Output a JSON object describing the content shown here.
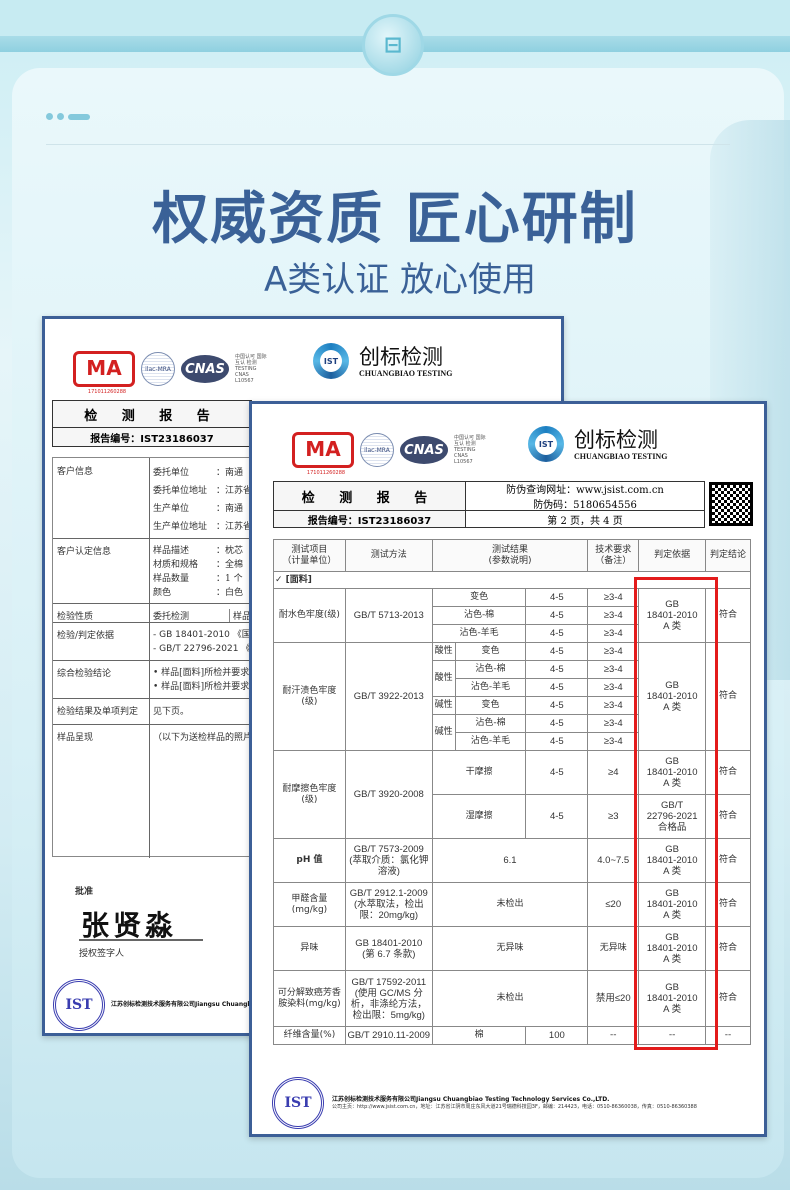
{
  "banner": {
    "badge_icon": "pillow-icon",
    "title": "权威资质 匠心研制",
    "subtitle": "A类认证 放心使用"
  },
  "colors": {
    "title": "#3a6197",
    "frame": "#3c5f97",
    "highlight": "#e31b1b"
  },
  "logos": {
    "cma": "MA",
    "cma_number": "171011260288",
    "ilac": "ilac-MRA",
    "cnas": "CNAS",
    "cnas_text": "中国认可 国际互认 检测 TESTING CNAS L10567",
    "ist": "IST",
    "company_cn": "创标检测",
    "company_en": "CHUANGBIAO TESTING"
  },
  "back_report": {
    "title": "检 测 报 告",
    "report_no": "报告编号：IST23186037",
    "rows": [
      {
        "label": "客户信息",
        "fields": [
          "委托单位　　　：南通",
          "委托单位地址　：江苏省",
          "生产单位　　　：南通",
          "生产单位地址　：江苏省"
        ]
      },
      {
        "label": "客户认定信息",
        "fields": [
          "样品描述　　　：枕芯",
          "材质和规格　　：全棉",
          "样品数量　　　：1 个",
          "颜色　　　　　：白色"
        ]
      },
      {
        "label": "检验性质",
        "fields": [
          "委托检测",
          "样品受理"
        ]
      },
      {
        "label": "检验/判定依据",
        "fields": [
          "- GB 18401-2010 《国家",
          "- GB/T 22796-2021 《床"
        ]
      },
      {
        "label": "综合检验结论",
        "fields": [
          "• 样品[面料]所检并要求判",
          "• 样品[面料]所检并要求判"
        ]
      },
      {
        "label": "检验结果及单项判定",
        "fields": [
          "见下页。"
        ]
      },
      {
        "label": "样品呈现",
        "fields": [
          "（以下为送检样品的照片）"
        ]
      }
    ],
    "approve": "批准",
    "signature": "张贤淼",
    "signer_label": "授权签字人",
    "footer_company": "江苏创标检测技术服务有限公司Jiangsu Chuangbiao"
  },
  "front_report": {
    "title": "检 测 报 告",
    "report_no": "报告编号：IST23186037",
    "verify_url": "防伪查询网址：www.jsist.com.cn",
    "verify_code": "防伪码：5180654556",
    "page": "第 2 页，共 4 页",
    "headers": [
      "测试项目\n（计量单位）",
      "测试方法",
      "测试结果\n(参数说明)",
      "技术要求\n（备注）",
      "判定依据",
      "判定结论"
    ],
    "section": "✓  [面料]",
    "water": {
      "item": "耐水色牢度(级)",
      "method": "GB/T 5713-2013",
      "rows": [
        [
          "变色",
          "4-5",
          "≥3-4"
        ],
        [
          "沾色-棉",
          "4-5",
          "≥3-4"
        ],
        [
          "沾色-羊毛",
          "4-5",
          "≥3-4"
        ]
      ],
      "basis": "GB\n18401-2010\nA 类",
      "result": "符合"
    },
    "sweat": {
      "item": "耐汗渍色牢度\n(级)",
      "method": "GB/T 3922-2013",
      "acid": "酸性",
      "alkali": "碱性",
      "rows": [
        [
          "变色",
          "4-5",
          "≥3-4"
        ],
        [
          "沾色-棉",
          "4-5",
          "≥3-4"
        ],
        [
          "沾色-羊毛",
          "4-5",
          "≥3-4"
        ],
        [
          "变色",
          "4-5",
          "≥3-4"
        ],
        [
          "沾色-棉",
          "4-5",
          "≥3-4"
        ],
        [
          "沾色-羊毛",
          "4-5",
          "≥3-4"
        ]
      ],
      "basis": "GB\n18401-2010\nA 类",
      "result": "符合"
    },
    "rub": {
      "item": "耐摩擦色牢度\n(级)",
      "method": "GB/T 3920-2008",
      "rows": [
        [
          "干摩擦",
          "4-5",
          "≥4",
          "GB\n18401-2010\nA 类",
          "符合"
        ],
        [
          "湿摩擦",
          "4-5",
          "≥3",
          "GB/T\n22796-2021\n合格品",
          "符合"
        ]
      ]
    },
    "single": [
      {
        "item": "pH 值",
        "method": "GB/T 7573-2009\n(萃取介质：氯化钾溶液)",
        "value": "6.1",
        "req": "4.0~7.5",
        "basis": "GB\n18401-2010\nA 类",
        "result": "符合"
      },
      {
        "item": "甲醛含量\n(mg/kg)",
        "method": "GB/T 2912.1-2009\n(水萃取法，检出限：20mg/kg)",
        "value": "未检出",
        "req": "≤20",
        "basis": "GB\n18401-2010\nA 类",
        "result": "符合"
      },
      {
        "item": "异味",
        "method": "GB 18401-2010\n(第 6.7 条款)",
        "value": "无异味",
        "req": "无异味",
        "basis": "GB\n18401-2010\nA 类",
        "result": "符合"
      },
      {
        "item": "可分解致癌芳香胺染料(mg/kg)",
        "method": "GB/T 17592-2011\n(使用 GC/MS 分析，非涤纶方法，检出限：5mg/kg)",
        "value": "未检出",
        "req": "禁用≤20",
        "basis": "GB\n18401-2010\nA 类",
        "result": "符合"
      }
    ],
    "fiber": {
      "item": "纤维含量(%)",
      "method": "GB/T 2910.11-2009",
      "name": "棉",
      "value": "100",
      "req": "--",
      "basis": "--",
      "result": "--"
    },
    "footer_company": "江苏创标检测技术服务有限公司Jiangsu Chuangbiao Testing Technology Services Co.,LTD.",
    "footer_line": "公司主页：http://www.jsist.com.cn，地址：江苏省江阴市周庄东风大道21号瑞德科技园3F，邮编：214423，电话：0510-86360038，传真：0510-86360388",
    "seal": "IST"
  }
}
